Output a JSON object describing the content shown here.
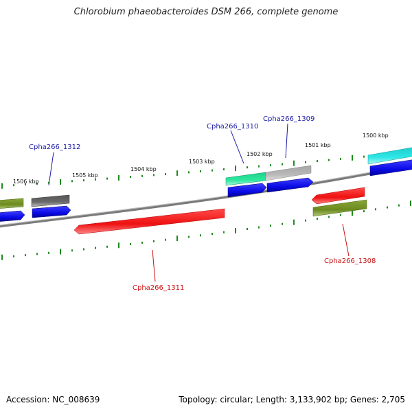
{
  "title": "Chlorobium phaeobacteroides DSM 266, complete genome",
  "footer": {
    "accession": "Accession: NC_008639",
    "summary": "Topology: circular; Length: 3,133,902 bp; Genes: 2,705"
  },
  "scale_labels": [
    "1506 kbp",
    "1505 kbp",
    "1504 kbp",
    "1503 kbp",
    "1502 kbp",
    "1501 kbp",
    "1500 kbp"
  ],
  "gene_labels": [
    {
      "text": "Cpha266_1312",
      "strand": "forward"
    },
    {
      "text": "Cpha266_1310",
      "strand": "forward"
    },
    {
      "text": "Cpha266_1309",
      "strand": "forward"
    },
    {
      "text": "Cpha266_1311",
      "strand": "reverse"
    },
    {
      "text": "Cpha266_1308",
      "strand": "reverse"
    }
  ],
  "colors": {
    "forward_label": "#1a1aa8",
    "reverse_label": "#cc1111",
    "tick": "#1f8a1f",
    "backbone": "#7a7a7a",
    "blue": "#0a0ae6",
    "red": "#ee1111",
    "olive": "#6b8a1e",
    "gray": "#6a6a6a",
    "mint": "#2ee8a0",
    "silver": "#b8b8b8",
    "cyan": "#2ee6e6"
  }
}
